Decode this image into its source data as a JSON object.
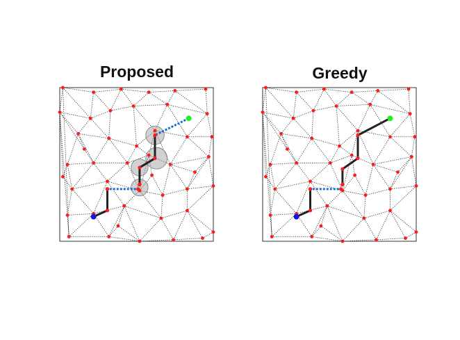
{
  "panels": [
    {
      "title": "Proposed",
      "nodes": [
        [
          0.02,
          0.0
        ],
        [
          0.22,
          0.03
        ],
        [
          0.4,
          0.01
        ],
        [
          0.58,
          0.03
        ],
        [
          0.75,
          0.02
        ],
        [
          0.95,
          0.01
        ],
        [
          0.0,
          0.16
        ],
        [
          0.2,
          0.2
        ],
        [
          0.33,
          0.15
        ],
        [
          0.48,
          0.12
        ],
        [
          0.7,
          0.11
        ],
        [
          0.96,
          0.17
        ],
        [
          0.12,
          0.3
        ],
        [
          0.32,
          0.33
        ],
        [
          0.5,
          0.38
        ],
        [
          0.62,
          0.28
        ],
        [
          0.83,
          0.32
        ],
        [
          0.99,
          0.32
        ],
        [
          0.05,
          0.5
        ],
        [
          0.22,
          0.49
        ],
        [
          0.44,
          0.49
        ],
        [
          0.58,
          0.44
        ],
        [
          0.72,
          0.5
        ],
        [
          0.97,
          0.45
        ],
        [
          0.08,
          0.66
        ],
        [
          0.31,
          0.61
        ],
        [
          0.52,
          0.67
        ],
        [
          0.67,
          0.7
        ],
        [
          0.83,
          0.66
        ],
        [
          1.0,
          0.64
        ],
        [
          0.05,
          0.83
        ],
        [
          0.22,
          0.82
        ],
        [
          0.42,
          0.77
        ],
        [
          0.66,
          0.85
        ],
        [
          0.83,
          0.8
        ],
        [
          1.0,
          0.94
        ],
        [
          0.06,
          0.97
        ],
        [
          0.32,
          0.97
        ],
        [
          0.52,
          1.0
        ],
        [
          0.74,
          0.99
        ],
        [
          0.93,
          0.98
        ],
        [
          0.02,
          0.58
        ],
        [
          0.16,
          0.4
        ],
        [
          0.38,
          0.9
        ],
        [
          0.6,
          0.57
        ],
        [
          0.88,
          0.55
        ]
      ],
      "edges": [
        [
          0,
          1
        ],
        [
          1,
          2
        ],
        [
          2,
          3
        ],
        [
          3,
          4
        ],
        [
          4,
          5
        ],
        [
          0,
          6
        ],
        [
          0,
          7
        ],
        [
          1,
          7
        ],
        [
          1,
          8
        ],
        [
          2,
          8
        ],
        [
          2,
          9
        ],
        [
          3,
          9
        ],
        [
          3,
          10
        ],
        [
          4,
          10
        ],
        [
          5,
          11
        ],
        [
          4,
          11
        ],
        [
          6,
          7
        ],
        [
          7,
          8
        ],
        [
          8,
          9
        ],
        [
          9,
          10
        ],
        [
          10,
          11
        ],
        [
          6,
          12
        ],
        [
          7,
          12
        ],
        [
          7,
          13
        ],
        [
          8,
          13
        ],
        [
          9,
          14
        ],
        [
          9,
          15
        ],
        [
          10,
          15
        ],
        [
          10,
          16
        ],
        [
          11,
          16
        ],
        [
          11,
          17
        ],
        [
          12,
          13
        ],
        [
          13,
          14
        ],
        [
          14,
          15
        ],
        [
          15,
          16
        ],
        [
          16,
          17
        ],
        [
          12,
          18
        ],
        [
          12,
          19
        ],
        [
          13,
          19
        ],
        [
          13,
          20
        ],
        [
          14,
          20
        ],
        [
          14,
          21
        ],
        [
          15,
          21
        ],
        [
          15,
          22
        ],
        [
          16,
          22
        ],
        [
          17,
          23
        ],
        [
          16,
          23
        ],
        [
          18,
          19
        ],
        [
          19,
          20
        ],
        [
          20,
          21
        ],
        [
          21,
          22
        ],
        [
          22,
          23
        ],
        [
          18,
          24
        ],
        [
          19,
          24
        ],
        [
          19,
          25
        ],
        [
          20,
          25
        ],
        [
          20,
          26
        ],
        [
          21,
          26
        ],
        [
          22,
          27
        ],
        [
          22,
          28
        ],
        [
          23,
          28
        ],
        [
          23,
          29
        ],
        [
          24,
          25
        ],
        [
          25,
          26
        ],
        [
          26,
          27
        ],
        [
          27,
          28
        ],
        [
          28,
          29
        ],
        [
          24,
          30
        ],
        [
          24,
          31
        ],
        [
          25,
          31
        ],
        [
          25,
          32
        ],
        [
          26,
          32
        ],
        [
          26,
          33
        ],
        [
          27,
          33
        ],
        [
          28,
          34
        ],
        [
          29,
          34
        ],
        [
          29,
          35
        ],
        [
          30,
          31
        ],
        [
          31,
          32
        ],
        [
          32,
          33
        ],
        [
          33,
          34
        ],
        [
          34,
          35
        ],
        [
          30,
          36
        ],
        [
          31,
          36
        ],
        [
          31,
          37
        ],
        [
          32,
          37
        ],
        [
          32,
          38
        ],
        [
          33,
          38
        ],
        [
          33,
          39
        ],
        [
          34,
          39
        ],
        [
          34,
          40
        ],
        [
          35,
          40
        ],
        [
          36,
          37
        ],
        [
          37,
          38
        ],
        [
          38,
          39
        ],
        [
          39,
          40
        ],
        [
          6,
          41
        ],
        [
          18,
          41
        ],
        [
          41,
          24
        ],
        [
          6,
          42
        ],
        [
          12,
          42
        ],
        [
          42,
          19
        ],
        [
          37,
          43
        ],
        [
          38,
          43
        ],
        [
          43,
          32
        ],
        [
          21,
          44
        ],
        [
          26,
          44
        ],
        [
          44,
          27
        ],
        [
          22,
          45
        ],
        [
          28,
          45
        ],
        [
          45,
          23
        ],
        [
          6,
          36
        ],
        [
          0,
          36
        ]
      ],
      "path": [
        {
          "pts": [
            [
              0.84,
              0.2
            ],
            [
              0.62,
              0.31
            ]
          ],
          "style": "dashed"
        },
        {
          "pts": [
            [
              0.62,
              0.31
            ],
            [
              0.62,
              0.46
            ],
            [
              0.52,
              0.52
            ],
            [
              0.52,
              0.63
            ]
          ],
          "style": "solid"
        },
        {
          "pts": [
            [
              0.52,
              0.63
            ],
            [
              0.51,
              0.66
            ],
            [
              0.31,
              0.66
            ]
          ],
          "style": "dashed"
        },
        {
          "pts": [
            [
              0.31,
              0.66
            ],
            [
              0.31,
              0.8
            ],
            [
              0.22,
              0.84
            ]
          ],
          "style": "solid"
        }
      ],
      "circles": [
        [
          0.62,
          0.31,
          0.06
        ],
        [
          0.63,
          0.46,
          0.07
        ],
        [
          0.52,
          0.52,
          0.055
        ],
        [
          0.52,
          0.65,
          0.055
        ]
      ],
      "start": [
        0.22,
        0.84
      ],
      "goal": [
        0.84,
        0.2
      ]
    },
    {
      "title": "Greedy",
      "nodes": [
        [
          0.02,
          0.0
        ],
        [
          0.22,
          0.03
        ],
        [
          0.4,
          0.01
        ],
        [
          0.58,
          0.03
        ],
        [
          0.75,
          0.02
        ],
        [
          0.95,
          0.01
        ],
        [
          0.0,
          0.16
        ],
        [
          0.2,
          0.2
        ],
        [
          0.33,
          0.15
        ],
        [
          0.48,
          0.12
        ],
        [
          0.7,
          0.11
        ],
        [
          0.96,
          0.17
        ],
        [
          0.12,
          0.3
        ],
        [
          0.32,
          0.33
        ],
        [
          0.5,
          0.38
        ],
        [
          0.62,
          0.28
        ],
        [
          0.83,
          0.32
        ],
        [
          0.99,
          0.32
        ],
        [
          0.05,
          0.5
        ],
        [
          0.22,
          0.49
        ],
        [
          0.44,
          0.49
        ],
        [
          0.58,
          0.44
        ],
        [
          0.72,
          0.5
        ],
        [
          0.97,
          0.45
        ],
        [
          0.08,
          0.66
        ],
        [
          0.31,
          0.61
        ],
        [
          0.52,
          0.67
        ],
        [
          0.67,
          0.7
        ],
        [
          0.83,
          0.66
        ],
        [
          1.0,
          0.64
        ],
        [
          0.05,
          0.83
        ],
        [
          0.22,
          0.82
        ],
        [
          0.42,
          0.77
        ],
        [
          0.66,
          0.85
        ],
        [
          0.83,
          0.8
        ],
        [
          1.0,
          0.94
        ],
        [
          0.06,
          0.97
        ],
        [
          0.32,
          0.97
        ],
        [
          0.52,
          1.0
        ],
        [
          0.74,
          0.99
        ],
        [
          0.93,
          0.98
        ],
        [
          0.02,
          0.58
        ],
        [
          0.16,
          0.4
        ],
        [
          0.38,
          0.9
        ],
        [
          0.6,
          0.57
        ],
        [
          0.88,
          0.55
        ]
      ],
      "edges": [
        [
          0,
          1
        ],
        [
          1,
          2
        ],
        [
          2,
          3
        ],
        [
          3,
          4
        ],
        [
          4,
          5
        ],
        [
          0,
          6
        ],
        [
          0,
          7
        ],
        [
          1,
          7
        ],
        [
          1,
          8
        ],
        [
          2,
          8
        ],
        [
          2,
          9
        ],
        [
          3,
          9
        ],
        [
          3,
          10
        ],
        [
          4,
          10
        ],
        [
          5,
          11
        ],
        [
          4,
          11
        ],
        [
          6,
          7
        ],
        [
          7,
          8
        ],
        [
          8,
          9
        ],
        [
          9,
          10
        ],
        [
          10,
          11
        ],
        [
          6,
          12
        ],
        [
          7,
          12
        ],
        [
          7,
          13
        ],
        [
          8,
          13
        ],
        [
          9,
          14
        ],
        [
          9,
          15
        ],
        [
          10,
          15
        ],
        [
          10,
          16
        ],
        [
          11,
          16
        ],
        [
          11,
          17
        ],
        [
          12,
          13
        ],
        [
          13,
          14
        ],
        [
          14,
          15
        ],
        [
          15,
          16
        ],
        [
          16,
          17
        ],
        [
          12,
          18
        ],
        [
          12,
          19
        ],
        [
          13,
          19
        ],
        [
          13,
          20
        ],
        [
          14,
          20
        ],
        [
          14,
          21
        ],
        [
          15,
          21
        ],
        [
          15,
          22
        ],
        [
          16,
          22
        ],
        [
          17,
          23
        ],
        [
          16,
          23
        ],
        [
          18,
          19
        ],
        [
          19,
          20
        ],
        [
          20,
          21
        ],
        [
          21,
          22
        ],
        [
          22,
          23
        ],
        [
          18,
          24
        ],
        [
          19,
          24
        ],
        [
          19,
          25
        ],
        [
          20,
          25
        ],
        [
          20,
          26
        ],
        [
          21,
          26
        ],
        [
          22,
          27
        ],
        [
          22,
          28
        ],
        [
          23,
          28
        ],
        [
          23,
          29
        ],
        [
          24,
          25
        ],
        [
          25,
          26
        ],
        [
          26,
          27
        ],
        [
          27,
          28
        ],
        [
          28,
          29
        ],
        [
          24,
          30
        ],
        [
          24,
          31
        ],
        [
          25,
          31
        ],
        [
          25,
          32
        ],
        [
          26,
          32
        ],
        [
          26,
          33
        ],
        [
          27,
          33
        ],
        [
          28,
          34
        ],
        [
          29,
          34
        ],
        [
          29,
          35
        ],
        [
          30,
          31
        ],
        [
          31,
          32
        ],
        [
          32,
          33
        ],
        [
          33,
          34
        ],
        [
          34,
          35
        ],
        [
          30,
          36
        ],
        [
          31,
          36
        ],
        [
          31,
          37
        ],
        [
          32,
          37
        ],
        [
          32,
          38
        ],
        [
          33,
          38
        ],
        [
          33,
          39
        ],
        [
          34,
          39
        ],
        [
          34,
          40
        ],
        [
          35,
          40
        ],
        [
          36,
          37
        ],
        [
          37,
          38
        ],
        [
          38,
          39
        ],
        [
          39,
          40
        ],
        [
          6,
          41
        ],
        [
          18,
          41
        ],
        [
          41,
          24
        ],
        [
          6,
          42
        ],
        [
          12,
          42
        ],
        [
          42,
          19
        ],
        [
          37,
          43
        ],
        [
          38,
          43
        ],
        [
          43,
          32
        ],
        [
          21,
          44
        ],
        [
          26,
          44
        ],
        [
          44,
          27
        ],
        [
          22,
          45
        ],
        [
          28,
          45
        ],
        [
          45,
          23
        ],
        [
          6,
          36
        ],
        [
          0,
          36
        ]
      ],
      "path": [
        {
          "pts": [
            [
              0.83,
              0.2
            ],
            [
              0.62,
              0.31
            ],
            [
              0.62,
              0.46
            ],
            [
              0.52,
              0.53
            ],
            [
              0.52,
              0.63
            ]
          ],
          "style": "solid"
        },
        {
          "pts": [
            [
              0.52,
              0.63
            ],
            [
              0.51,
              0.66
            ],
            [
              0.31,
              0.66
            ]
          ],
          "style": "dashed"
        },
        {
          "pts": [
            [
              0.31,
              0.66
            ],
            [
              0.31,
              0.8
            ],
            [
              0.22,
              0.84
            ]
          ],
          "style": "solid"
        }
      ],
      "circles": [],
      "start": [
        0.22,
        0.84
      ],
      "goal": [
        0.83,
        0.2
      ]
    }
  ],
  "colors": {
    "node": "#ff1a1a",
    "mesh": "#222222",
    "path_solid": "#222222",
    "path_dashed": "#1a6fd6",
    "start": "#1515e0",
    "goal": "#22ee22",
    "circle_fill": "#9a9a9a"
  }
}
